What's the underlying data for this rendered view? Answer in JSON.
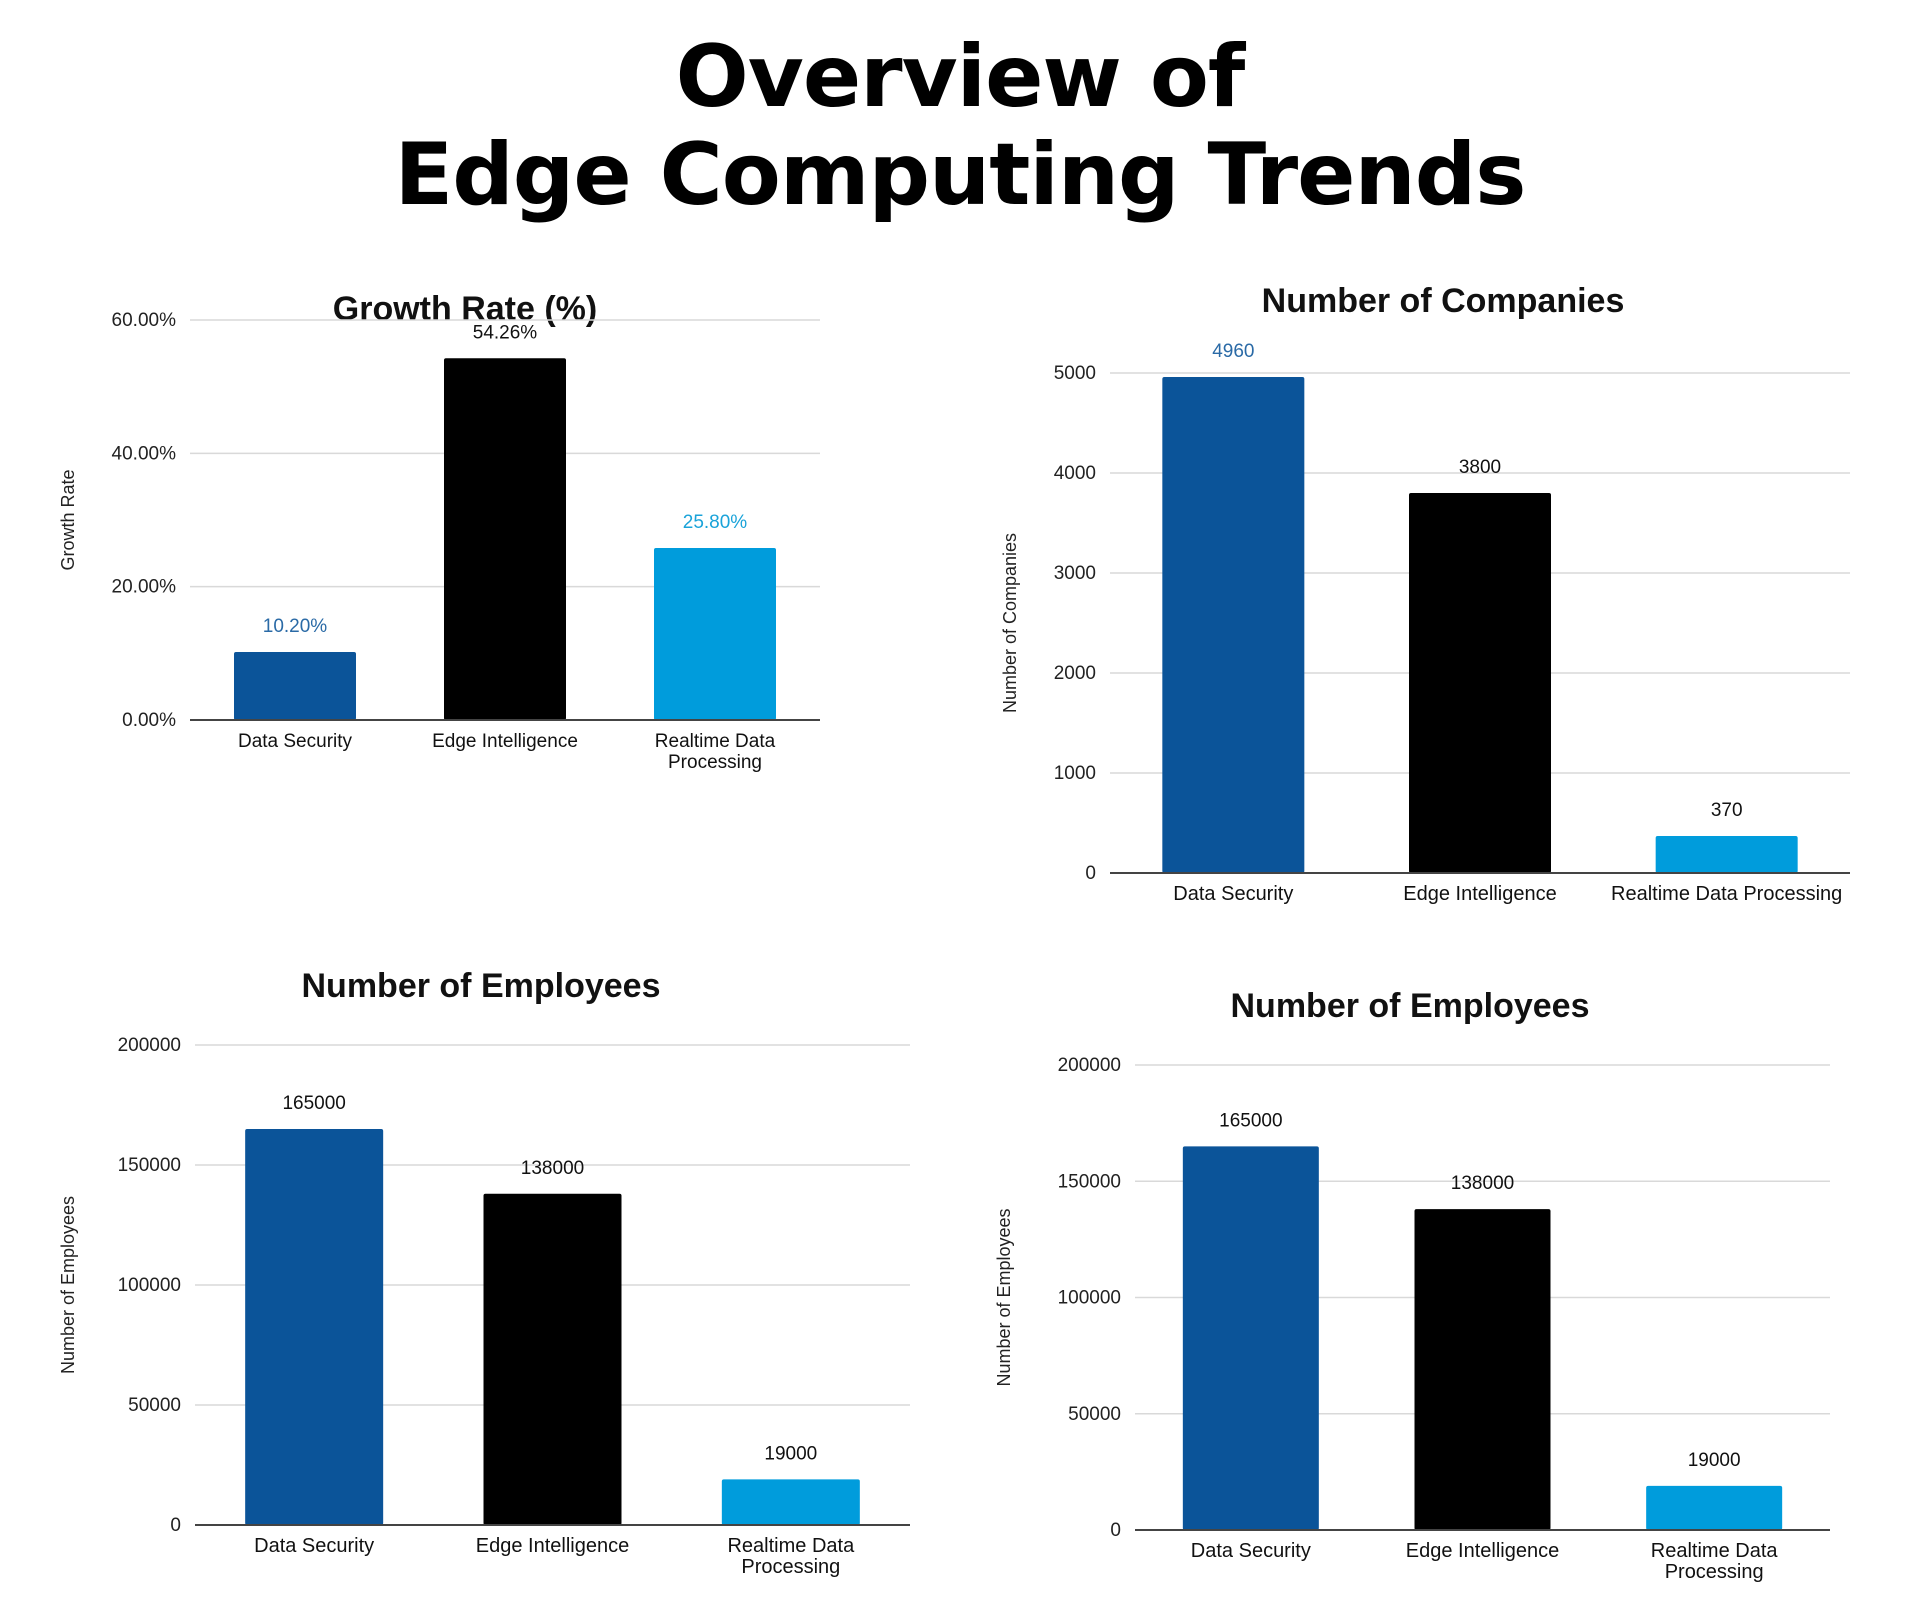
{
  "page": {
    "title_line1": "Overview of",
    "title_line2": "Edge Computing Trends"
  },
  "colors": {
    "data_security": "#0b5499",
    "edge_intelligence": "#000000",
    "realtime_data_processing": "#009cdc",
    "label_blue_dark": "#2a6aa6",
    "label_blue_light": "#1aa3d9",
    "grid": "#d9d9d9",
    "axis": "#444444"
  },
  "chart_data": [
    {
      "id": "growth",
      "type": "bar",
      "title": "Growth Rate (%)",
      "xlabel": "",
      "ylabel": "Growth Rate",
      "categories": [
        "Data Security",
        "Edge Intelligence",
        "Realtime Data Processing"
      ],
      "values": [
        10.2,
        54.26,
        25.8
      ],
      "value_labels": [
        "10.20%",
        "54.26%",
        "25.80%"
      ],
      "ylim": [
        0,
        60
      ],
      "yticks": [
        0,
        20,
        40,
        60
      ],
      "ytick_labels": [
        "0.00%",
        "20.00%",
        "40.00%",
        "60.00%"
      ],
      "grid": true,
      "legend": "none"
    },
    {
      "id": "companies",
      "type": "bar",
      "title": "Number of Companies",
      "xlabel": "",
      "ylabel": "Number of Companies",
      "categories": [
        "Data Security",
        "Edge Intelligence",
        "Realtime Data Processing"
      ],
      "values": [
        4960,
        3800,
        370
      ],
      "value_labels": [
        "4960",
        "3800",
        "370"
      ],
      "ylim": [
        0,
        5000
      ],
      "yticks": [
        0,
        1000,
        2000,
        3000,
        4000,
        5000
      ],
      "ytick_labels": [
        "0",
        "1000",
        "2000",
        "3000",
        "4000",
        "5000"
      ],
      "grid": true,
      "legend": "none"
    },
    {
      "id": "employees-left",
      "type": "bar",
      "title": "Number of Employees",
      "xlabel": "",
      "ylabel": "Number of Employees",
      "categories": [
        "Data Security",
        "Edge Intelligence",
        "Realtime Data Processing"
      ],
      "values": [
        165000,
        138000,
        19000
      ],
      "value_labels": [
        "165000",
        "138000",
        "19000"
      ],
      "ylim": [
        0,
        200000
      ],
      "yticks": [
        0,
        50000,
        100000,
        150000,
        200000
      ],
      "ytick_labels": [
        "0",
        "50000",
        "100000",
        "150000",
        "200000"
      ],
      "grid": true,
      "legend": "none"
    },
    {
      "id": "employees-right",
      "type": "bar",
      "title": "Number of Employees",
      "xlabel": "",
      "ylabel": "Number of Employees",
      "categories": [
        "Data Security",
        "Edge Intelligence",
        "Realtime Data Processing"
      ],
      "values": [
        165000,
        138000,
        19000
      ],
      "value_labels": [
        "165000",
        "138000",
        "19000"
      ],
      "ylim": [
        0,
        200000
      ],
      "yticks": [
        0,
        50000,
        100000,
        150000,
        200000
      ],
      "ytick_labels": [
        "0",
        "50000",
        "100000",
        "150000",
        "200000"
      ],
      "grid": true,
      "legend": "none"
    }
  ]
}
